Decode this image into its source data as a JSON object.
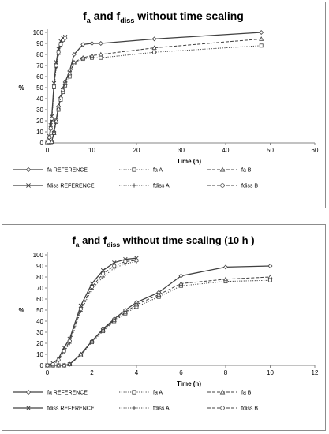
{
  "chart_data": [
    {
      "type": "line",
      "title": {
        "f": "f",
        "a": "a",
        "and": " and ",
        "f2": "f",
        "diss": "diss",
        "rest": " without time scaling"
      },
      "xlabel": "Time (h)",
      "ylabel": "%",
      "xlim": [
        0,
        60
      ],
      "ylim": [
        0,
        100
      ],
      "x_ticks": [
        "0",
        "10",
        "20",
        "30",
        "40",
        "50",
        "60"
      ],
      "y_ticks": [
        "0",
        "10",
        "20",
        "30",
        "40",
        "50",
        "60",
        "70",
        "80",
        "90",
        "100"
      ],
      "grid": false,
      "legend_position": "bottom",
      "series": [
        {
          "name": "fa REFERENCE",
          "marker": "diamond",
          "dash": "solid",
          "x": [
            0,
            0.25,
            0.5,
            0.75,
            1,
            1.5,
            2,
            2.5,
            3,
            3.5,
            4,
            5,
            6,
            8,
            10,
            12,
            24,
            48
          ],
          "y": [
            0,
            0,
            0,
            0,
            1,
            10,
            21,
            33,
            41,
            49,
            55,
            65,
            80,
            89,
            90,
            90,
            94,
            100
          ]
        },
        {
          "name": "fa A",
          "marker": "square",
          "dash": "dotted",
          "x": [
            0,
            0.25,
            0.5,
            0.75,
            1,
            1.5,
            2,
            2.5,
            3,
            3.5,
            4,
            5,
            6,
            8,
            10,
            12,
            24,
            48
          ],
          "y": [
            0,
            0,
            0,
            0,
            1,
            9,
            19,
            30,
            39,
            46,
            52,
            60,
            72,
            76,
            77,
            77,
            82,
            88
          ]
        },
        {
          "name": "fa B",
          "marker": "triangle",
          "dash": "dashed",
          "x": [
            0,
            0.25,
            0.5,
            0.75,
            1,
            1.5,
            2,
            2.5,
            3,
            3.5,
            4,
            5,
            6,
            8,
            10,
            12,
            24,
            48
          ],
          "y": [
            0,
            0,
            0,
            0,
            1,
            9,
            20,
            31,
            41,
            48,
            54,
            63,
            73,
            77,
            79,
            80,
            86,
            94
          ]
        },
        {
          "name": "fdiss REFERENCE",
          "marker": "x",
          "dash": "solid",
          "x": [
            0,
            0.25,
            0.5,
            0.75,
            1,
            1.5,
            2,
            2.5,
            3,
            3.5,
            4
          ],
          "y": [
            0,
            2,
            6,
            16,
            24,
            54,
            73,
            85,
            92,
            95,
            96
          ]
        },
        {
          "name": "fdiss A",
          "marker": "plus",
          "dash": "dotted",
          "x": [
            0,
            0.25,
            0.5,
            0.75,
            1,
            1.5,
            2,
            2.5,
            3,
            3.5,
            4
          ],
          "y": [
            0,
            1,
            4,
            12,
            20,
            49,
            68,
            80,
            88,
            92,
            94
          ]
        },
        {
          "name": "fdiss B",
          "marker": "circle",
          "dash": "dashed",
          "x": [
            0,
            0.25,
            0.5,
            0.75,
            1,
            1.5,
            2,
            2.5,
            3,
            3.5,
            4
          ],
          "y": [
            0,
            1,
            5,
            13,
            22,
            51,
            70,
            82,
            89,
            93,
            95
          ]
        }
      ]
    },
    {
      "type": "line",
      "title": {
        "f": "f",
        "a": "a",
        "and": " and ",
        "f2": "f",
        "diss": "diss",
        "rest": " without time scaling (10 h )"
      },
      "xlabel": "Time (h)",
      "ylabel": "%",
      "xlim": [
        0,
        12
      ],
      "ylim": [
        0,
        100
      ],
      "x_ticks": [
        "0",
        "2",
        "4",
        "6",
        "8",
        "10",
        "12"
      ],
      "y_ticks": [
        "0",
        "10",
        "20",
        "30",
        "40",
        "50",
        "60",
        "70",
        "80",
        "90",
        "100"
      ],
      "grid": false,
      "legend_position": "bottom",
      "series": [
        {
          "name": "fa REFERENCE",
          "marker": "diamond",
          "dash": "solid",
          "x": [
            0,
            0.25,
            0.5,
            0.75,
            1,
            1.5,
            2,
            2.5,
            3,
            3.5,
            4,
            5,
            6,
            8,
            10
          ],
          "y": [
            0,
            0,
            0,
            0,
            1,
            10,
            22,
            33,
            42,
            50,
            57,
            66,
            81,
            89,
            90
          ]
        },
        {
          "name": "fa A",
          "marker": "square",
          "dash": "dotted",
          "x": [
            0,
            0.25,
            0.5,
            0.75,
            1,
            1.5,
            2,
            2.5,
            3,
            3.5,
            4,
            5,
            6,
            8,
            10
          ],
          "y": [
            0,
            0,
            0,
            0,
            1,
            9,
            21,
            31,
            40,
            47,
            53,
            62,
            72,
            76,
            77
          ]
        },
        {
          "name": "fa B",
          "marker": "triangle",
          "dash": "dashed",
          "x": [
            0,
            0.25,
            0.5,
            0.75,
            1,
            1.5,
            2,
            2.5,
            3,
            3.5,
            4,
            5,
            6,
            8,
            10
          ],
          "y": [
            0,
            0,
            0,
            0,
            1,
            10,
            22,
            32,
            41,
            48,
            55,
            64,
            74,
            78,
            80
          ]
        },
        {
          "name": "fdiss REFERENCE",
          "marker": "x",
          "dash": "solid",
          "x": [
            0,
            0.25,
            0.5,
            0.75,
            1,
            1.5,
            2,
            2.5,
            3,
            3.5,
            4
          ],
          "y": [
            0,
            2,
            6,
            16,
            24,
            54,
            74,
            86,
            93,
            96,
            97
          ]
        },
        {
          "name": "fdiss A",
          "marker": "plus",
          "dash": "dotted",
          "x": [
            0,
            0.25,
            0.5,
            0.75,
            1,
            1.5,
            2,
            2.5,
            3,
            3.5,
            4
          ],
          "y": [
            0,
            1,
            4,
            12,
            20,
            49,
            69,
            80,
            88,
            92,
            94
          ]
        },
        {
          "name": "fdiss B",
          "marker": "circle",
          "dash": "dashed",
          "x": [
            0,
            0.25,
            0.5,
            0.75,
            1,
            1.5,
            2,
            2.5,
            3,
            3.5,
            4
          ],
          "y": [
            0,
            1,
            5,
            13,
            22,
            51,
            71,
            83,
            90,
            94,
            95
          ]
        }
      ]
    }
  ]
}
